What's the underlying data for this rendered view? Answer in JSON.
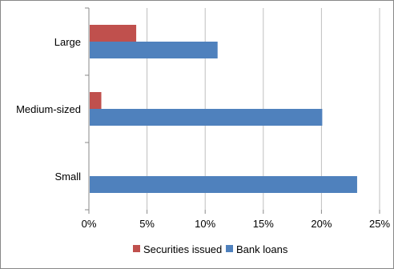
{
  "chart_data": {
    "type": "bar",
    "orientation": "horizontal",
    "categories": [
      "Large",
      "Medium-sized",
      "Small"
    ],
    "series": [
      {
        "name": "Securities issued",
        "color": "#c0504d",
        "values": [
          4,
          1,
          0
        ]
      },
      {
        "name": "Bank loans",
        "color": "#4f81bd",
        "values": [
          11,
          20,
          23
        ]
      }
    ],
    "x_ticks": [
      "0%",
      "5%",
      "10%",
      "15%",
      "20%",
      "25%"
    ],
    "xlim": [
      0,
      25
    ],
    "grid": "vertical",
    "legend_position": "bottom"
  }
}
